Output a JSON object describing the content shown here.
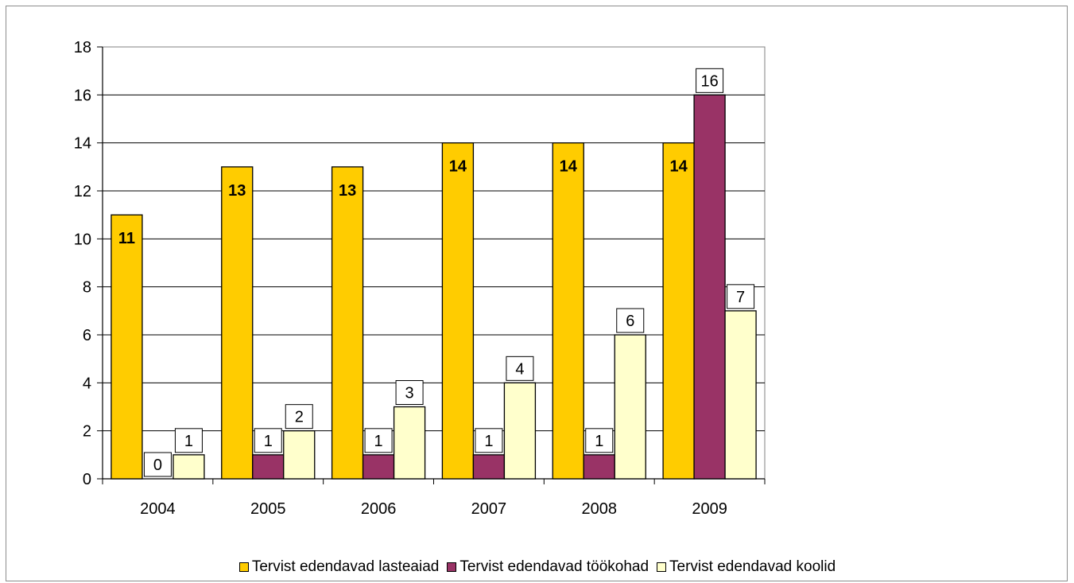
{
  "chart_data": {
    "type": "bar",
    "categories": [
      "2004",
      "2005",
      "2006",
      "2007",
      "2008",
      "2009"
    ],
    "series": [
      {
        "name": "Tervist edendavad lasteaiad",
        "values": [
          11,
          13,
          13,
          14,
          14,
          14
        ],
        "color": "#ffcc00"
      },
      {
        "name": "Tervist edendavad töökohad",
        "values": [
          0,
          1,
          1,
          1,
          1,
          16
        ],
        "color": "#993366"
      },
      {
        "name": "Tervist edendavad koolid",
        "values": [
          1,
          2,
          3,
          4,
          6,
          7
        ],
        "color": "#ffffcc"
      }
    ],
    "ylim": [
      0,
      18
    ],
    "yticks": [
      0,
      2,
      4,
      6,
      8,
      10,
      12,
      14,
      16,
      18
    ],
    "ytick_labels": [
      "0",
      "2",
      "4",
      "6",
      "8",
      "10",
      "12",
      "14",
      "16",
      "18"
    ],
    "grid": true,
    "legend_position": "bottom",
    "data_labels": [
      [
        "11",
        "13",
        "13",
        "14",
        "14",
        "14"
      ],
      [
        "0",
        "1",
        "1",
        "1",
        "1",
        "16"
      ],
      [
        "1",
        "2",
        "3",
        "4",
        "6",
        "7"
      ]
    ]
  }
}
